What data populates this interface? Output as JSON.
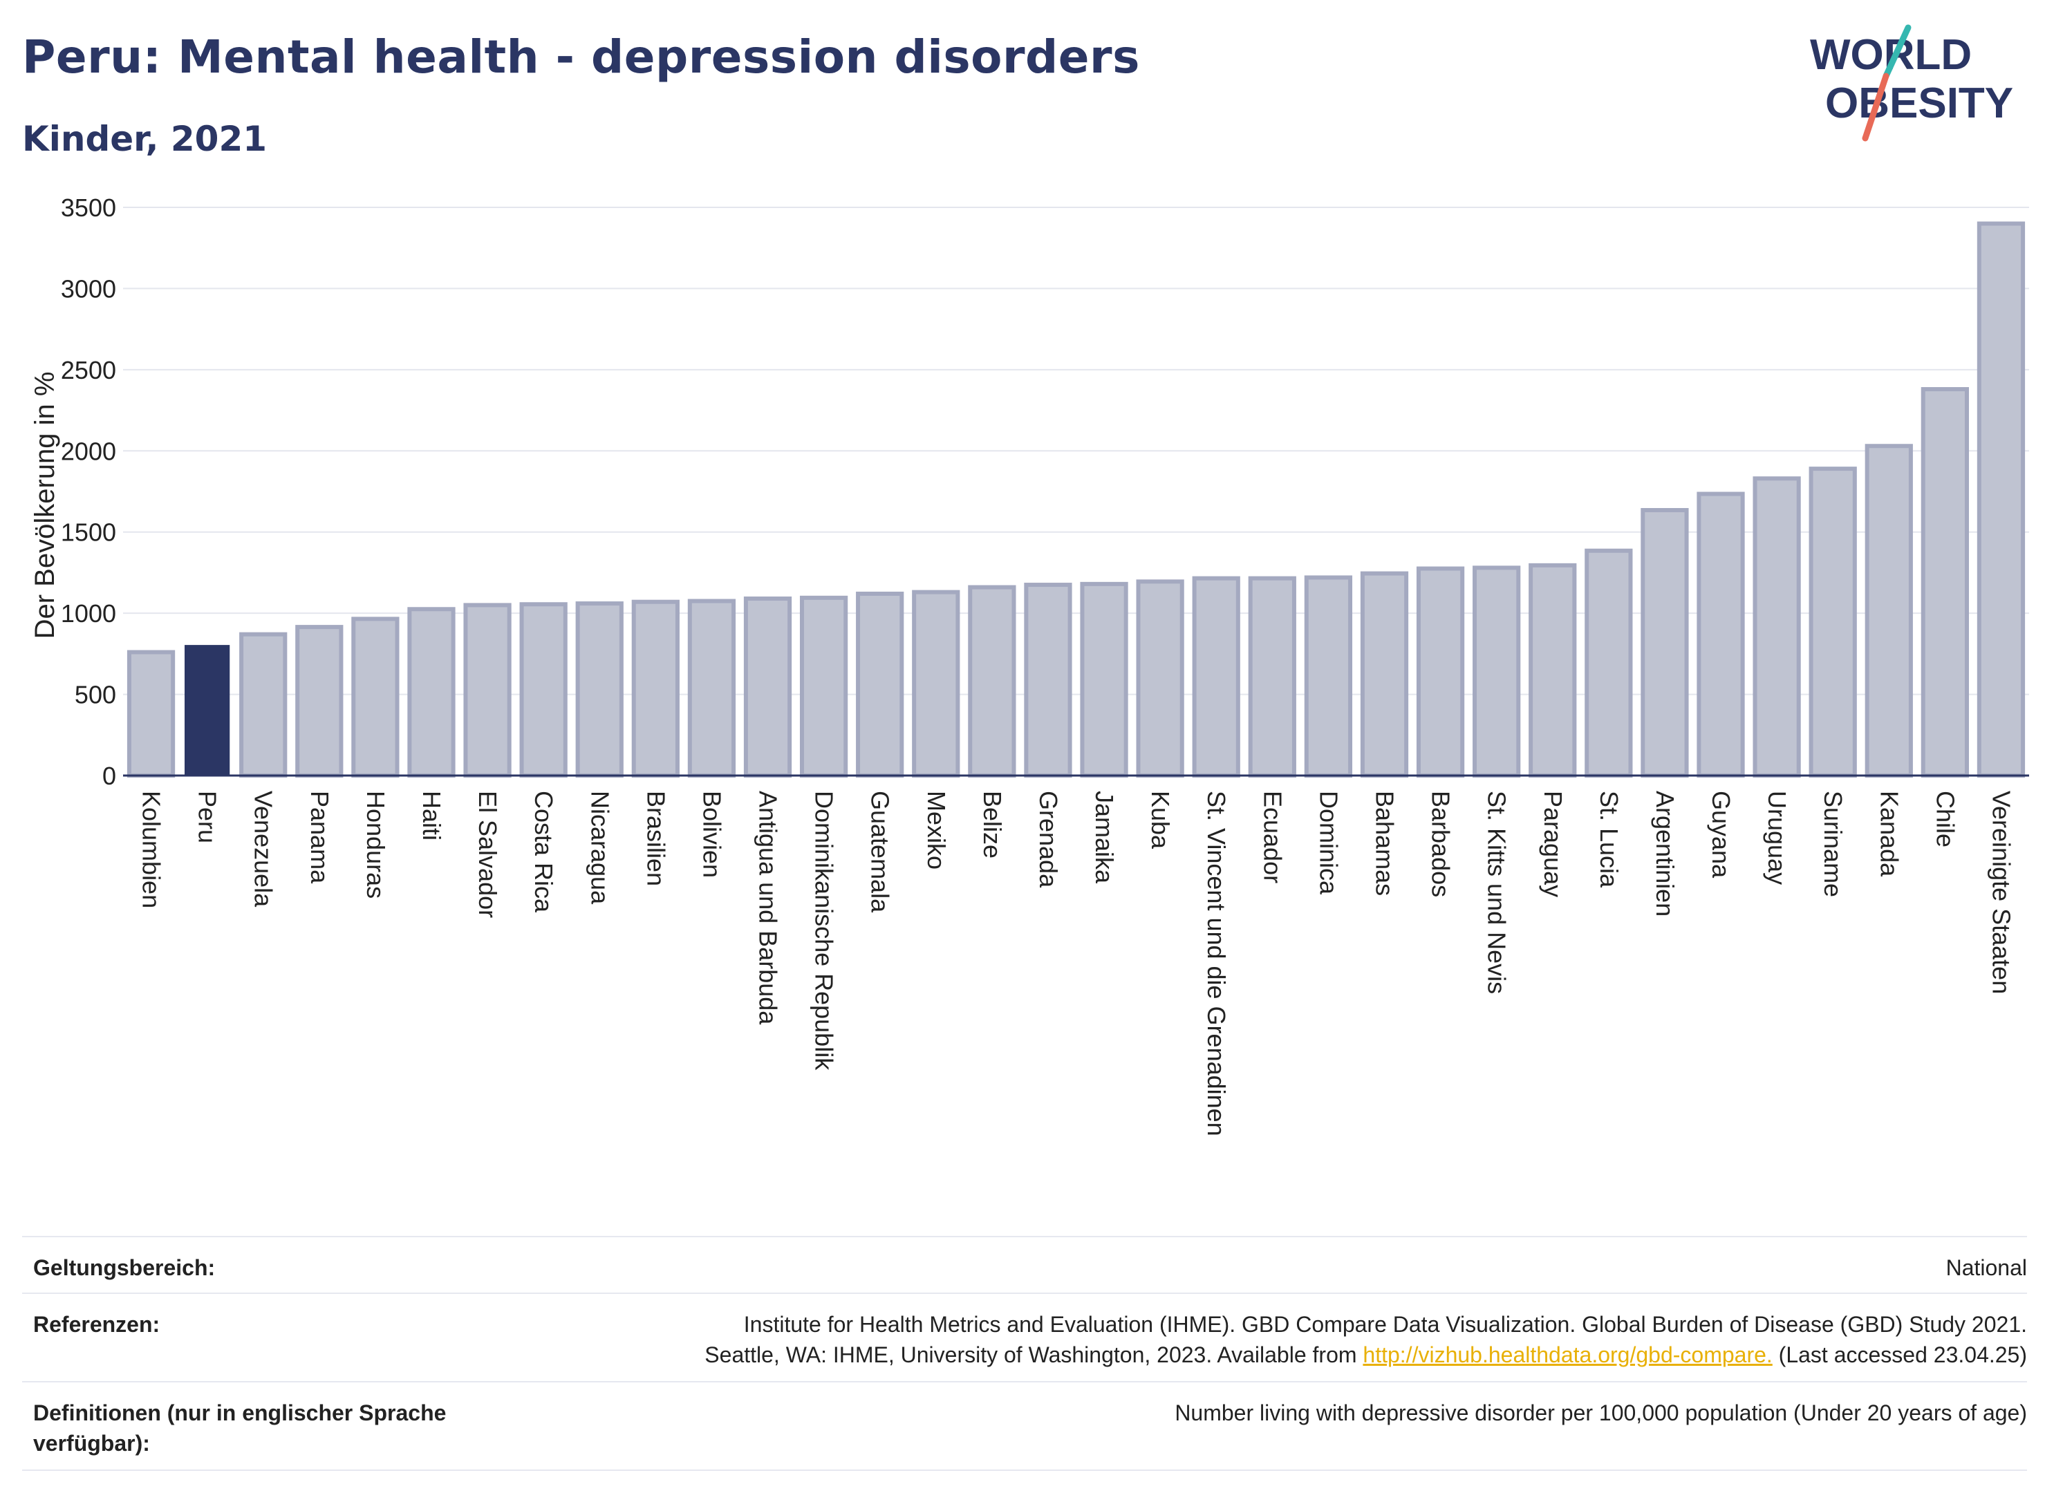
{
  "header": {
    "title": "Peru: Mental health - depression disorders",
    "subtitle": "Kinder, 2021",
    "logo_line1": "WORLD",
    "logo_line2": "OBESITY"
  },
  "chart_data": {
    "type": "bar",
    "title": "Peru: Mental health - depression disorders",
    "subtitle": "Kinder, 2021",
    "xlabel": "",
    "ylabel": "Der Bevölkerung in %",
    "ylim": [
      0,
      3500
    ],
    "yticks": [
      0,
      500,
      1000,
      1500,
      2000,
      2500,
      3000,
      3500
    ],
    "grid": true,
    "highlight": "Peru",
    "colors": {
      "highlight": "#2b3664",
      "bar": "#bfc3d1",
      "bar_edge": "#a4a9c0"
    },
    "categories": [
      "Kolumbien",
      "Peru",
      "Venezuela",
      "Panama",
      "Honduras",
      "Haiti",
      "El Salvador",
      "Costa Rica",
      "Nicaragua",
      "Brasilien",
      "Bolivien",
      "Antigua und Barbuda",
      "Dominikanische Republik",
      "Guatemala",
      "Mexiko",
      "Belize",
      "Grenada",
      "Jamaika",
      "Kuba",
      "St. Vincent und die Grenadinen",
      "Ecuador",
      "Dominica",
      "Bahamas",
      "Barbados",
      "St. Kitts und Nevis",
      "Paraguay",
      "St. Lucia",
      "Argentinien",
      "Guyana",
      "Uruguay",
      "Suriname",
      "Kanada",
      "Chile",
      "Vereinigte Staaten"
    ],
    "values": [
      760,
      800,
      870,
      915,
      965,
      1025,
      1050,
      1055,
      1060,
      1070,
      1075,
      1090,
      1095,
      1120,
      1130,
      1160,
      1175,
      1180,
      1195,
      1215,
      1215,
      1220,
      1245,
      1275,
      1280,
      1295,
      1385,
      1635,
      1735,
      1830,
      1890,
      2030,
      2380,
      3400
    ]
  },
  "meta": {
    "scope_label": "Geltungsbereich:",
    "scope_value": "National",
    "ref_label": "Referenzen:",
    "ref_line1": "Institute for Health Metrics and Evaluation (IHME). GBD Compare Data Visualization. Global Burden of Disease (GBD) Study 2021.",
    "ref_line2_pre": "Seattle, WA: IHME, University of Washington, 2023. Available from ",
    "ref_link": "http://vizhub.healthdata.org/gbd-compare.",
    "ref_line2_post": " (Last accessed 23.04.25)",
    "def_label": "Definitionen (nur in englischer Sprache verfügbar):",
    "def_value": "Number living with depressive disorder per 100,000 population (Under 20 years of age)"
  }
}
